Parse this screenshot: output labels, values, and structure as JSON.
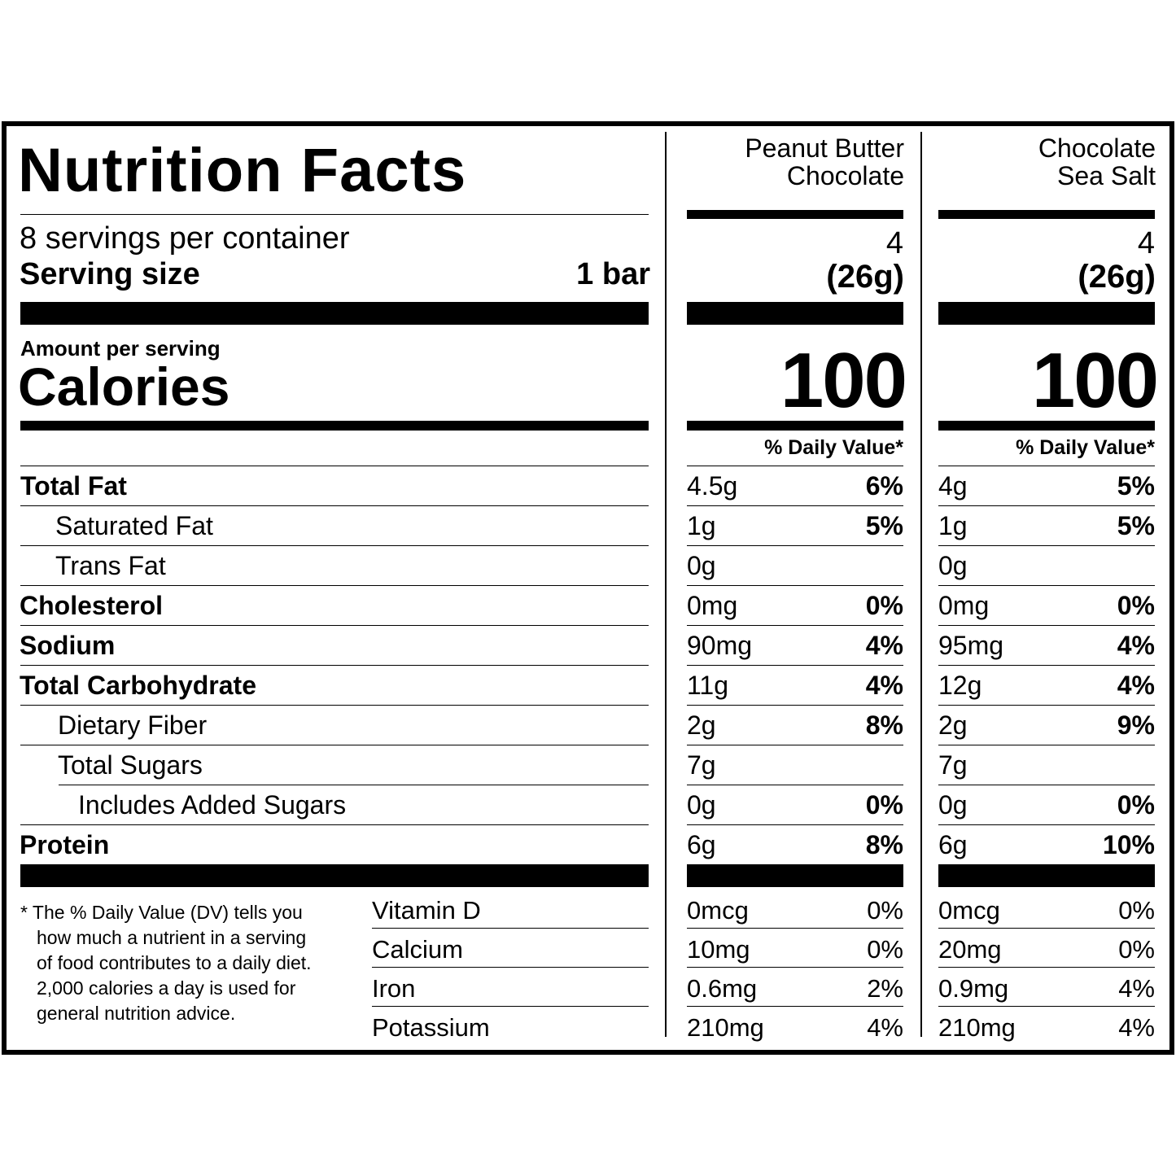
{
  "title": "Nutrition Facts",
  "servings_per_container": "8 servings per container",
  "serving_size_label": "Serving size",
  "serving_size": "1 bar",
  "amount_per_serving": "Amount per serving",
  "calories_label": "Calories",
  "daily_value_header": "% Daily Value*",
  "nutrients": [
    "Total Fat",
    "Saturated Fat",
    "Trans Fat",
    "Cholesterol",
    "Sodium",
    "Total Carbohydrate",
    "Dietary Fiber",
    "Total Sugars",
    "Includes Added Sugars",
    "Protein"
  ],
  "vitamins": [
    "Vitamin D",
    "Calcium",
    "Iron",
    "Potassium"
  ],
  "footnote": [
    "* The % Daily Value (DV) tells you",
    "how much a nutrient in a serving",
    "of food contributes to a daily diet.",
    "2,000 calories a day is used for",
    "general nutrition advice."
  ],
  "products": [
    {
      "name": [
        "Peanut Butter",
        "Chocolate"
      ],
      "serving_count": 4,
      "serving_weight": "(26g)",
      "calories": 100,
      "nutrients": [
        {
          "amount": "4.5g",
          "dv": "6%"
        },
        {
          "amount": "1g",
          "dv": "5%"
        },
        {
          "amount": "0g"
        },
        {
          "amount": "0mg",
          "dv": "0%"
        },
        {
          "amount": "90mg",
          "dv": "4%"
        },
        {
          "amount": "11g",
          "dv": "4%"
        },
        {
          "amount": "2g",
          "dv": "8%"
        },
        {
          "amount": "7g"
        },
        {
          "amount": "0g",
          "dv": "0%"
        },
        {
          "amount": "6g",
          "dv": "8%"
        }
      ],
      "vitamins": [
        {
          "amount": "0mcg",
          "dv": "0%"
        },
        {
          "amount": "10mg",
          "dv": "0%"
        },
        {
          "amount": "0.6mg",
          "dv": "2%"
        },
        {
          "amount": "210mg",
          "dv": "4%"
        }
      ]
    },
    {
      "name": [
        "Chocolate",
        "Sea Salt"
      ],
      "serving_count": 4,
      "serving_weight": "(26g)",
      "calories": 100,
      "nutrients": [
        {
          "amount": "4g",
          "dv": "5%"
        },
        {
          "amount": "1g",
          "dv": "5%"
        },
        {
          "amount": "0g"
        },
        {
          "amount": "0mg",
          "dv": "0%"
        },
        {
          "amount": "95mg",
          "dv": "4%"
        },
        {
          "amount": "12g",
          "dv": "4%"
        },
        {
          "amount": "2g",
          "dv": "9%"
        },
        {
          "amount": "7g"
        },
        {
          "amount": "0g",
          "dv": "0%"
        },
        {
          "amount": "6g",
          "dv": "10%"
        }
      ],
      "vitamins": [
        {
          "amount": "0mcg",
          "dv": "0%"
        },
        {
          "amount": "20mg",
          "dv": "0%"
        },
        {
          "amount": "0.9mg",
          "dv": "4%"
        },
        {
          "amount": "210mg",
          "dv": "4%"
        }
      ]
    }
  ]
}
